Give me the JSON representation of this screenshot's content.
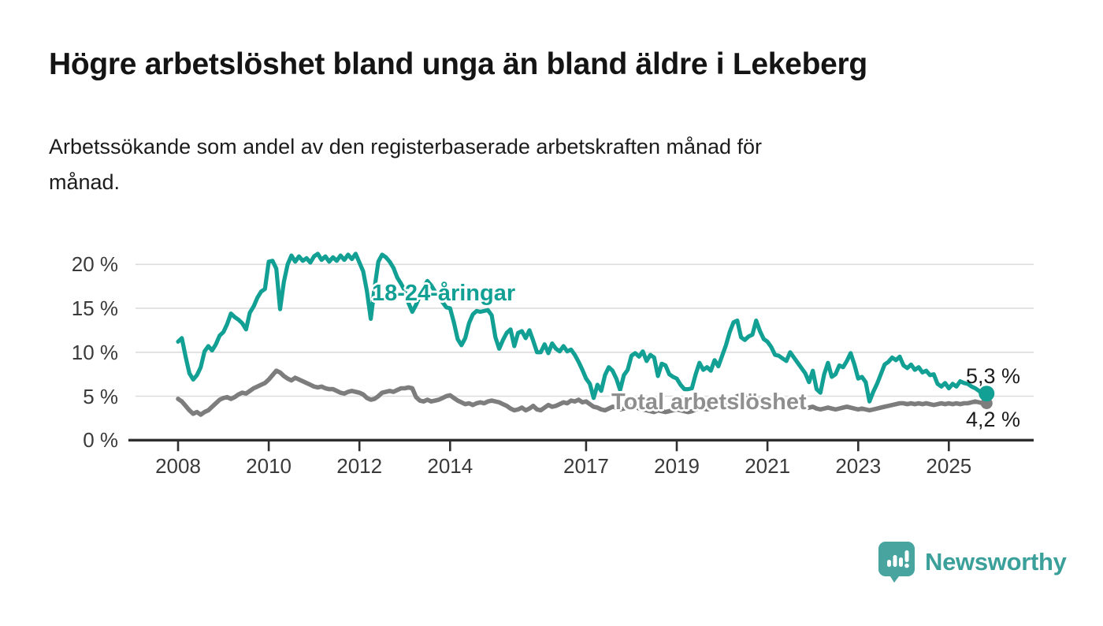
{
  "header": {
    "title": "Högre arbetslöshet bland unga än bland äldre i Lekeberg",
    "subtitle_line1": "Arbetssökande som andel av den registerbaserade arbetskraften månad för",
    "subtitle_line2": "månad."
  },
  "branding": {
    "name": "Newsworthy",
    "icon": "newsworthy-speech-bubble-bar-chart-icon",
    "text_color": "#3ba099",
    "icon_color": "#47a49e"
  },
  "colors": {
    "youth_line": "#12a095",
    "total_line": "#7d7d7d",
    "grid": "#dcdcdc",
    "axis": "#2f2f2f",
    "axis_text": "#3a3a3a"
  },
  "chart_data": {
    "type": "line",
    "title": "Högre arbetslöshet bland unga än bland äldre i Lekeberg",
    "subtitle": "Arbetssökande som andel av den registerbaserade arbetskraften månad för månad.",
    "x_interval": "monthly",
    "x_start": "2008-01",
    "x_end": "2025-11",
    "grid": "horizontal",
    "legend_position": "inline-annotations",
    "ylim": [
      0,
      22
    ],
    "y_ticks": [
      0,
      5,
      10,
      15,
      20
    ],
    "y_tick_labels": [
      "0 %",
      "5 %",
      "10 %",
      "15 %",
      "20 %"
    ],
    "x_tick_years": [
      2008,
      2010,
      2012,
      2014,
      2017,
      2019,
      2021,
      2023,
      2025
    ],
    "x_tick_labels": [
      "2008",
      "2010",
      "2012",
      "2014",
      "2017",
      "2019",
      "2021",
      "2023",
      "2025"
    ],
    "series": [
      {
        "name": "18-24-åringar",
        "color": "#12a095",
        "end_label": "5,3 %",
        "end_value": 5.3,
        "values": [
          11.2,
          11.6,
          9.5,
          7.6,
          6.9,
          7.4,
          8.3,
          10.1,
          10.7,
          10.2,
          10.9,
          11.9,
          12.3,
          13.2,
          14.4,
          14.0,
          13.7,
          13.3,
          12.6,
          14.5,
          15.2,
          16.2,
          16.9,
          17.2,
          20.3,
          20.4,
          19.5,
          14.9,
          18.0,
          20.0,
          21.0,
          20.3,
          20.9,
          20.4,
          20.7,
          20.2,
          20.9,
          21.2,
          20.5,
          20.9,
          20.3,
          20.8,
          20.4,
          21.0,
          20.5,
          21.1,
          20.6,
          21.2,
          20.2,
          19.2,
          16.9,
          13.8,
          17.3,
          20.3,
          21.1,
          20.8,
          20.3,
          19.6,
          18.5,
          17.8,
          17.0,
          15.6,
          14.6,
          15.4,
          16.4,
          17.4,
          18.1,
          17.6,
          16.9,
          16.3,
          15.7,
          15.1,
          15.0,
          13.4,
          11.5,
          10.8,
          11.6,
          13.3,
          14.3,
          14.7,
          14.6,
          14.7,
          14.8,
          14.2,
          11.7,
          10.4,
          11.4,
          12.2,
          12.6,
          10.7,
          12.2,
          12.4,
          11.6,
          12.5,
          11.3,
          10.0,
          10.0,
          10.9,
          9.9,
          11.0,
          10.4,
          10.1,
          10.7,
          10.1,
          10.3,
          9.7,
          8.9,
          8.0,
          7.0,
          6.4,
          4.8,
          6.3,
          5.6,
          7.4,
          8.3,
          7.9,
          7.0,
          5.7,
          7.4,
          8.0,
          9.6,
          9.9,
          9.5,
          10.1,
          9.0,
          9.7,
          9.4,
          7.3,
          8.7,
          8.5,
          7.5,
          7.2,
          7.0,
          6.3,
          5.8,
          5.8,
          5.9,
          7.5,
          8.8,
          8.0,
          8.3,
          7.9,
          9.1,
          8.4,
          9.6,
          10.8,
          12.3,
          13.4,
          13.6,
          11.7,
          11.4,
          11.8,
          12.0,
          13.6,
          12.4,
          11.5,
          11.2,
          10.6,
          9.7,
          9.6,
          9.3,
          9.0,
          10.0,
          9.4,
          8.8,
          8.2,
          7.6,
          6.6,
          7.9,
          5.8,
          5.4,
          7.5,
          8.8,
          7.2,
          7.5,
          8.5,
          8.3,
          9.0,
          9.9,
          8.6,
          7.0,
          7.2,
          6.6,
          4.4,
          5.5,
          6.4,
          7.5,
          8.6,
          8.9,
          9.4,
          9.1,
          9.5,
          8.5,
          8.2,
          8.6,
          8.0,
          8.3,
          7.7,
          7.9,
          7.4,
          7.5,
          6.4,
          6.1,
          6.5,
          5.9,
          6.4,
          6.1,
          6.7,
          6.5,
          6.4,
          6.1,
          5.9,
          5.6,
          5.2,
          5.3
        ]
      },
      {
        "name": "Total arbetslöshet",
        "color": "#7d7d7d",
        "end_label": "4,2 %",
        "end_value": 4.2,
        "values": [
          4.7,
          4.4,
          3.9,
          3.4,
          3.0,
          3.2,
          2.9,
          3.2,
          3.4,
          3.8,
          4.2,
          4.6,
          4.8,
          4.9,
          4.7,
          4.9,
          5.2,
          5.4,
          5.3,
          5.6,
          5.9,
          6.1,
          6.3,
          6.5,
          6.9,
          7.4,
          7.9,
          7.7,
          7.3,
          7.0,
          6.8,
          7.1,
          6.9,
          6.7,
          6.5,
          6.3,
          6.1,
          6.0,
          6.1,
          5.9,
          5.8,
          5.8,
          5.6,
          5.4,
          5.3,
          5.5,
          5.6,
          5.5,
          5.4,
          5.2,
          4.8,
          4.6,
          4.7,
          5.0,
          5.4,
          5.5,
          5.6,
          5.5,
          5.7,
          5.9,
          5.9,
          6.0,
          5.9,
          4.9,
          4.5,
          4.4,
          4.6,
          4.4,
          4.5,
          4.6,
          4.8,
          5.0,
          5.1,
          4.8,
          4.5,
          4.3,
          4.1,
          4.2,
          4.0,
          4.2,
          4.3,
          4.2,
          4.4,
          4.5,
          4.4,
          4.3,
          4.1,
          3.9,
          3.6,
          3.4,
          3.5,
          3.7,
          3.4,
          3.6,
          3.9,
          3.5,
          3.4,
          3.7,
          4.0,
          3.8,
          3.9,
          4.1,
          4.3,
          4.2,
          4.5,
          4.4,
          4.6,
          4.3,
          4.4,
          4.1,
          3.8,
          3.7,
          3.5,
          3.4,
          3.6,
          3.8,
          3.7,
          3.5,
          3.6,
          3.8,
          3.9,
          3.8,
          3.6,
          3.5,
          3.4,
          3.3,
          3.2,
          3.4,
          3.3,
          3.2,
          3.3,
          3.4,
          3.5,
          3.4,
          3.3,
          3.2,
          3.3,
          3.5,
          3.7,
          3.6,
          3.5,
          3.6,
          3.7,
          3.8,
          3.9,
          4.0,
          4.4,
          4.8,
          5.0,
          5.1,
          5.0,
          4.9,
          4.8,
          4.7,
          4.6,
          4.7,
          4.8,
          4.7,
          4.6,
          4.4,
          4.3,
          4.2,
          4.0,
          3.9,
          3.8,
          3.7,
          3.6,
          3.7,
          3.8,
          3.6,
          3.5,
          3.6,
          3.7,
          3.6,
          3.5,
          3.6,
          3.7,
          3.8,
          3.7,
          3.6,
          3.5,
          3.6,
          3.5,
          3.4,
          3.5,
          3.6,
          3.7,
          3.8,
          3.9,
          4.0,
          4.1,
          4.2,
          4.2,
          4.1,
          4.2,
          4.1,
          4.2,
          4.1,
          4.2,
          4.1,
          4.0,
          4.1,
          4.2,
          4.1,
          4.2,
          4.1,
          4.2,
          4.1,
          4.2,
          4.2,
          4.3,
          4.4,
          4.3,
          4.2,
          4.2
        ]
      }
    ]
  }
}
